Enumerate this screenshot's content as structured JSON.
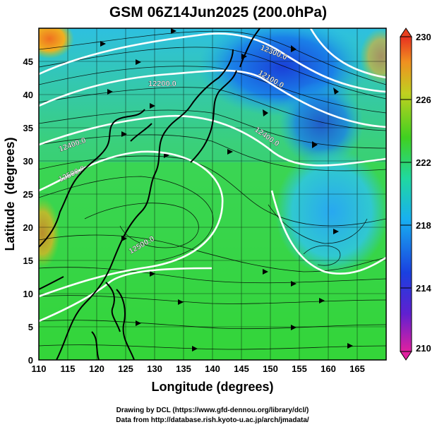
{
  "title": "GSM 06Z14Jun2025 (200.0hPa)",
  "map": {
    "x_label": "Longitude (degrees)",
    "y_label": "Latitude  (degrees)",
    "lon_ticks": [
      "110",
      "115",
      "120",
      "125",
      "130",
      "135",
      "140",
      "145",
      "150",
      "155",
      "160",
      "165"
    ],
    "lat_ticks": [
      "0",
      "5",
      "10",
      "15",
      "20",
      "25",
      "30",
      "35",
      "40",
      "45"
    ],
    "lon_range": [
      110,
      170
    ],
    "lat_range": [
      0,
      50
    ],
    "contour_labels": [
      "12300.0",
      "12200.0",
      "12100.0",
      "12400.0",
      "12500.0",
      "12500.0",
      "12400.0"
    ]
  },
  "colorbar": {
    "ticks": [
      "230",
      "226",
      "222",
      "218",
      "214",
      "210"
    ],
    "values": [
      230,
      226,
      222,
      218,
      214,
      210
    ],
    "range": [
      210,
      230
    ],
    "colors": [
      "#e0207a",
      "#3a2ad0",
      "#18a8e8",
      "#30d83a",
      "#9ad020",
      "#e8a020",
      "#e84020"
    ]
  },
  "credits": {
    "line1": "Drawing by DCL (https://www.gfd-dennou.org/library/dcl/)",
    "line2": "Data from http://database.rish.kyoto-u.ac.jp/arch/jmadata/"
  }
}
